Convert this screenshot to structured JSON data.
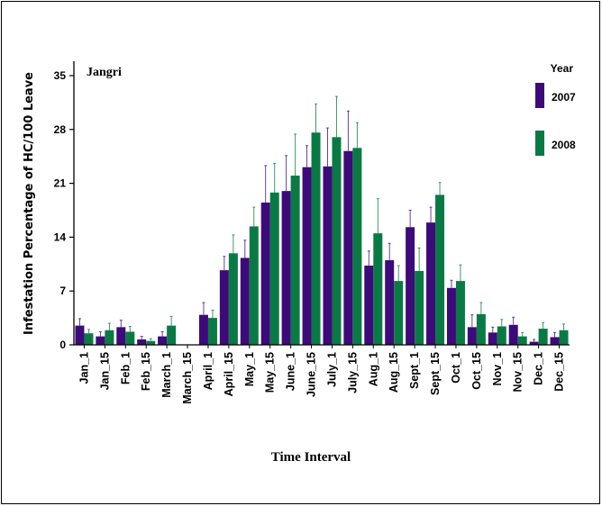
{
  "chart_data": {
    "type": "bar",
    "annotation": "Jangri",
    "xlabel": "Time Interval",
    "ylabel": "Infestation Percentage of HC/100 Leave",
    "ylim": [
      0,
      35
    ],
    "yticks": [
      "0",
      "7",
      "14",
      "21",
      "28",
      "35"
    ],
    "legend_title": "Year",
    "legend_position": "top-right",
    "categories": [
      "Jan_1",
      "Jan_15",
      "Feb_1",
      "Feb_15",
      "March_1",
      "March_15",
      "April_1",
      "April_15",
      "May_1",
      "May_15",
      "June_1",
      "June_15",
      "July_1",
      "July_15",
      "Aug_1",
      "Aug_15",
      "Sept_1",
      "Sept_15",
      "Oct_1",
      "Oct_15",
      "Nov_1",
      "Nov_15",
      "Dec_1",
      "Dec_15"
    ],
    "series": [
      {
        "name": "2007",
        "color": "#3d0a7a",
        "values": [
          2.5,
          1.1,
          2.3,
          0.7,
          1.1,
          0,
          3.9,
          9.7,
          11.3,
          18.5,
          20.0,
          23.1,
          23.2,
          25.2,
          10.3,
          11.0,
          15.3,
          15.9,
          7.4,
          2.3,
          1.6,
          2.6,
          0.4,
          1.0
        ],
        "errors": [
          0.9,
          0.6,
          0.9,
          0.4,
          0.6,
          0,
          1.6,
          1.8,
          2.3,
          4.8,
          4.6,
          2.8,
          5.0,
          5.2,
          1.9,
          2.2,
          2.2,
          2.0,
          1.0,
          1.6,
          0.7,
          1.0,
          0.3,
          0.6
        ]
      },
      {
        "name": "2008",
        "color": "#0a7a44",
        "values": [
          1.5,
          1.9,
          1.7,
          0.5,
          2.5,
          0,
          3.5,
          11.9,
          15.4,
          19.8,
          22.0,
          27.6,
          27.0,
          25.6,
          14.5,
          8.3,
          9.6,
          19.5,
          8.3,
          4.0,
          2.4,
          1.1,
          2.1,
          1.9
        ],
        "errors": [
          0.5,
          0.9,
          0.7,
          0.3,
          1.2,
          0,
          1.0,
          2.4,
          2.5,
          3.8,
          5.4,
          3.7,
          5.3,
          3.3,
          4.5,
          2.0,
          3.0,
          1.6,
          2.1,
          1.5,
          0.9,
          0.5,
          0.8,
          0.8
        ]
      }
    ]
  }
}
